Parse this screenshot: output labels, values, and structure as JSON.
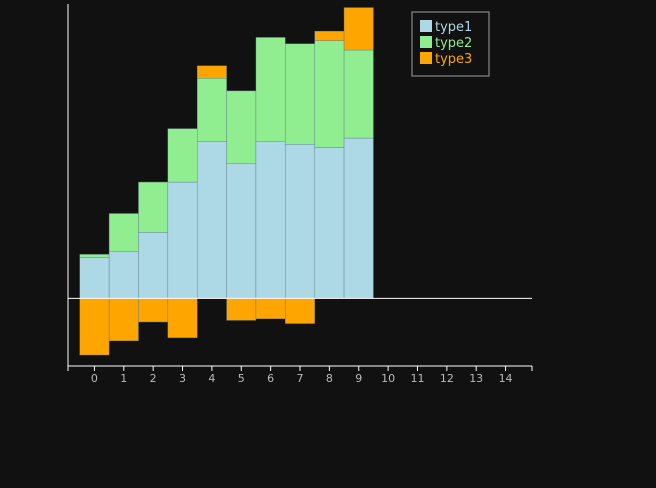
{
  "chart_data": {
    "type": "bar",
    "stacked": true,
    "x": [
      0,
      1,
      2,
      3,
      4,
      5,
      6,
      7,
      8,
      9
    ],
    "series": [
      {
        "name": "type1",
        "color": "#add8e6",
        "values": [
          0.13,
          0.15,
          0.21,
          0.37,
          0.5,
          0.43,
          0.5,
          0.49,
          0.48,
          0.51
        ]
      },
      {
        "name": "type2",
        "color": "#90ee90",
        "values": [
          0.01,
          0.12,
          0.16,
          0.17,
          0.2,
          0.23,
          0.33,
          0.32,
          0.34,
          0.28
        ]
      },
      {
        "name": "type3",
        "color": "#ffa500",
        "values": [
          -0.18,
          -0.135,
          -0.075,
          -0.125,
          0.04,
          -0.07,
          -0.065,
          -0.08,
          0.03,
          0.135
        ]
      }
    ],
    "x_ticks": [
      "0",
      "1",
      "2",
      "3",
      "4",
      "5",
      "6",
      "7",
      "8",
      "9",
      "10",
      "11",
      "12",
      "13",
      "14"
    ],
    "xlim": [
      -0.9,
      14.9
    ],
    "ylim": [
      -0.215,
      0.93
    ],
    "legend_position": "top-right",
    "grid": false
  }
}
